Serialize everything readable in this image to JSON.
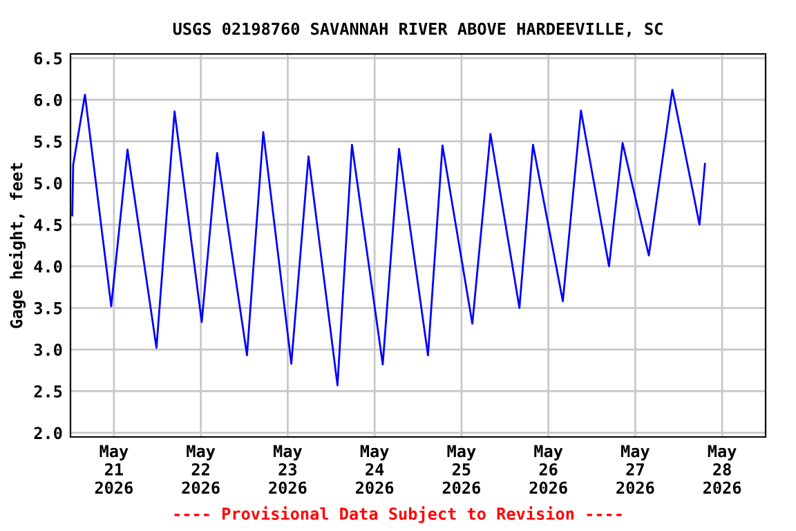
{
  "chart_data": {
    "type": "line",
    "title": "USGS 02198760 SAVANNAH RIVER ABOVE HARDEEVILLE, SC",
    "ylabel": "Gage height, feet",
    "annotations": [
      "---- Provisional Data Subject to Revision ----"
    ],
    "x": [
      "2026-05-20T12:30",
      "2026-05-20T12:45",
      "2026-05-20T16:00",
      "2026-05-20T23:15",
      "2026-05-21T03:45",
      "2026-05-21T11:45",
      "2026-05-21T16:45",
      "2026-05-22T00:15",
      "2026-05-22T04:30",
      "2026-05-22T12:45",
      "2026-05-22T17:15",
      "2026-05-23T01:00",
      "2026-05-23T05:45",
      "2026-05-23T13:45",
      "2026-05-23T17:45",
      "2026-05-24T02:15",
      "2026-05-24T06:45",
      "2026-05-24T14:45",
      "2026-05-24T18:45",
      "2026-05-25T03:00",
      "2026-05-25T08:00",
      "2026-05-25T16:00",
      "2026-05-25T19:45",
      "2026-05-26T04:00",
      "2026-05-26T09:00",
      "2026-05-26T16:45",
      "2026-05-26T20:30",
      "2026-05-27T03:45",
      "2026-05-27T10:15",
      "2026-05-27T17:45",
      "2026-05-27T19:15"
    ],
    "series": [
      {
        "color": "#0000ff",
        "values": [
          4.61,
          5.22,
          6.06,
          3.52,
          5.4,
          3.02,
          5.86,
          3.33,
          5.36,
          2.93,
          5.61,
          2.83,
          5.32,
          2.57,
          5.46,
          2.82,
          5.41,
          2.93,
          5.45,
          3.31,
          5.59,
          3.5,
          5.46,
          3.58,
          5.87,
          4.0,
          5.48,
          4.13,
          6.12,
          4.5,
          5.23
        ]
      }
    ],
    "xlim": [
      "2026-05-20T12:00",
      "2026-05-28T12:00"
    ],
    "xticks": [
      {
        "value": "2026-05-21",
        "label": "May\n21\n2026"
      },
      {
        "value": "2026-05-22",
        "label": "May\n22\n2026"
      },
      {
        "value": "2026-05-23",
        "label": "May\n23\n2026"
      },
      {
        "value": "2026-05-24",
        "label": "May\n24\n2026"
      },
      {
        "value": "2026-05-25",
        "label": "May\n25\n2026"
      },
      {
        "value": "2026-05-26",
        "label": "May\n26\n2026"
      },
      {
        "value": "2026-05-27",
        "label": "May\n27\n2026"
      },
      {
        "value": "2026-05-28",
        "label": "May\n28\n2026"
      }
    ],
    "ylim": [
      1.95,
      6.55
    ],
    "yticks": [
      {
        "value": 2.0,
        "label": "2.0"
      },
      2.5,
      {
        "value": 3.0,
        "label": "3.0"
      },
      3.5,
      {
        "value": 4.0,
        "label": "4.0"
      },
      4.5,
      {
        "value": 5.0,
        "label": "5.0"
      },
      5.5,
      {
        "value": 6.0,
        "label": "6.0"
      },
      6.5
    ],
    "grid": true,
    "line_style": "solid",
    "marker": "none"
  }
}
